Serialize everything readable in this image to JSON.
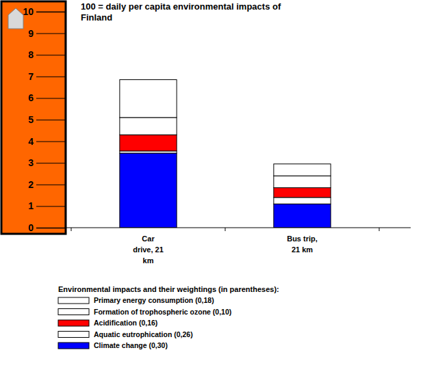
{
  "chart_data": {
    "type": "bar",
    "stacked": true,
    "title": "100 = daily per capita environmental impacts of Finland",
    "legend_title": "Environmental impacts and their weightings (in parentheses):",
    "categories": [
      "Car drive, 21 km",
      "Bus trip, 21 km"
    ],
    "series": [
      {
        "name": "Climate change (0,30)",
        "color": "#0000ff",
        "values": [
          3.45,
          1.1
        ]
      },
      {
        "name": "Aquatic eutrophication (0,26)",
        "color": "#ffffff",
        "values": [
          0.1,
          0.3
        ]
      },
      {
        "name": "Acidification (0,16)",
        "color": "#ff0000",
        "values": [
          0.75,
          0.45
        ]
      },
      {
        "name": "Formation of trophospheric ozone (0,10)",
        "color": "#ffffff",
        "values": [
          0.8,
          0.55
        ]
      },
      {
        "name": "Primary energy consumption (0,18)",
        "color": "#ffffff",
        "values": [
          1.75,
          0.55
        ]
      }
    ],
    "ylim": [
      0,
      10
    ],
    "yticks": [
      0,
      1,
      2,
      3,
      4,
      5,
      6,
      7,
      8,
      9,
      10
    ],
    "legend": "bottom",
    "grid": false
  }
}
